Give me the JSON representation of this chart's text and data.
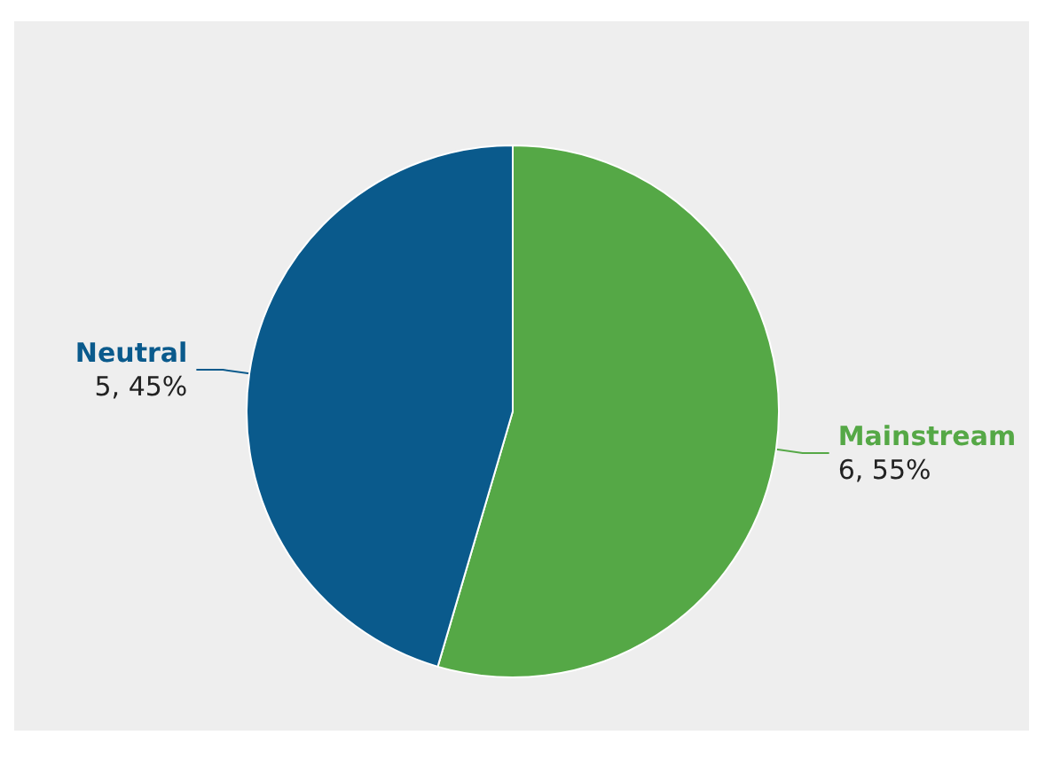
{
  "chart_data": {
    "type": "pie",
    "categories": [
      "Mainstream",
      "Neutral"
    ],
    "values": [
      6,
      5
    ],
    "colors": [
      "#55a846",
      "#0a5a8c"
    ],
    "value_labels": [
      "6, 55%",
      "5, 45%"
    ],
    "legend": false
  }
}
